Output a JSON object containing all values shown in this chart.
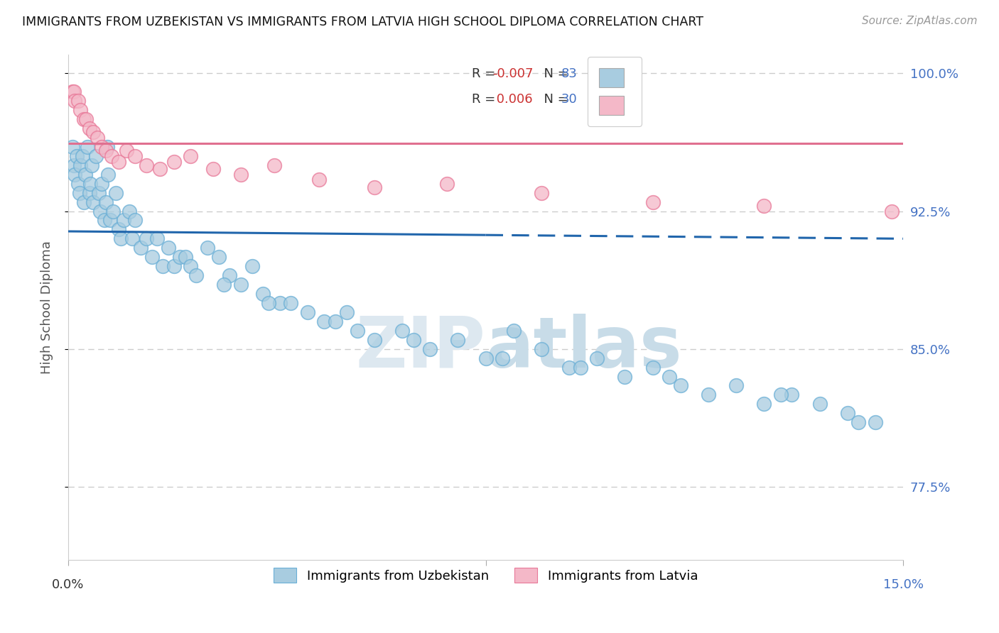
{
  "title": "IMMIGRANTS FROM UZBEKISTAN VS IMMIGRANTS FROM LATVIA HIGH SCHOOL DIPLOMA CORRELATION CHART",
  "source": "Source: ZipAtlas.com",
  "ylabel": "High School Diploma",
  "ytick_labels": [
    "100.0%",
    "92.5%",
    "85.0%",
    "77.5%"
  ],
  "ytick_values": [
    1.0,
    0.925,
    0.85,
    0.775
  ],
  "legend_label1": "Immigrants from Uzbekistan",
  "legend_label2": "Immigrants from Latvia",
  "blue_color": "#a8cce0",
  "blue_edge_color": "#6aafd6",
  "pink_color": "#f4b8c8",
  "pink_edge_color": "#e87898",
  "blue_line_color": "#2166ac",
  "pink_line_color": "#e07090",
  "legend_box_color": "#a8cce0",
  "legend_box_color2": "#f4b8c8",
  "blue_line_y": 0.912,
  "pink_line_y": 0.962,
  "xmin": 0.0,
  "xmax": 15.0,
  "ymin": 0.735,
  "ymax": 1.01,
  "blue_x": [
    0.08,
    0.1,
    0.12,
    0.15,
    0.18,
    0.2,
    0.22,
    0.25,
    0.28,
    0.3,
    0.35,
    0.38,
    0.4,
    0.42,
    0.45,
    0.5,
    0.55,
    0.58,
    0.6,
    0.65,
    0.68,
    0.7,
    0.72,
    0.75,
    0.8,
    0.85,
    0.9,
    0.95,
    1.0,
    1.1,
    1.15,
    1.2,
    1.3,
    1.4,
    1.5,
    1.6,
    1.7,
    1.8,
    1.9,
    2.0,
    2.1,
    2.2,
    2.3,
    2.5,
    2.7,
    2.9,
    3.1,
    3.3,
    3.5,
    3.8,
    4.0,
    4.3,
    4.6,
    5.0,
    5.5,
    6.0,
    6.5,
    7.0,
    7.5,
    8.0,
    8.5,
    9.0,
    9.5,
    10.0,
    10.5,
    11.0,
    11.5,
    12.0,
    12.5,
    13.0,
    13.5,
    14.0,
    14.5,
    5.2,
    6.2,
    7.8,
    9.2,
    10.8,
    12.8,
    14.2,
    2.8,
    3.6,
    4.8
  ],
  "blue_y": [
    0.96,
    0.95,
    0.945,
    0.955,
    0.94,
    0.935,
    0.95,
    0.955,
    0.93,
    0.945,
    0.96,
    0.935,
    0.94,
    0.95,
    0.93,
    0.955,
    0.935,
    0.925,
    0.94,
    0.92,
    0.93,
    0.96,
    0.945,
    0.92,
    0.925,
    0.935,
    0.915,
    0.91,
    0.92,
    0.925,
    0.91,
    0.92,
    0.905,
    0.91,
    0.9,
    0.91,
    0.895,
    0.905,
    0.895,
    0.9,
    0.9,
    0.895,
    0.89,
    0.905,
    0.9,
    0.89,
    0.885,
    0.895,
    0.88,
    0.875,
    0.875,
    0.87,
    0.865,
    0.87,
    0.855,
    0.86,
    0.85,
    0.855,
    0.845,
    0.86,
    0.85,
    0.84,
    0.845,
    0.835,
    0.84,
    0.83,
    0.825,
    0.83,
    0.82,
    0.825,
    0.82,
    0.815,
    0.81,
    0.86,
    0.855,
    0.845,
    0.84,
    0.835,
    0.825,
    0.81,
    0.885,
    0.875,
    0.865
  ],
  "pink_x": [
    0.08,
    0.1,
    0.12,
    0.18,
    0.22,
    0.28,
    0.32,
    0.38,
    0.45,
    0.52,
    0.6,
    0.68,
    0.78,
    0.9,
    1.05,
    1.2,
    1.4,
    1.65,
    1.9,
    2.2,
    2.6,
    3.1,
    3.7,
    4.5,
    5.5,
    6.8,
    8.5,
    10.5,
    12.5,
    14.8
  ],
  "pink_y": [
    0.99,
    0.99,
    0.985,
    0.985,
    0.98,
    0.975,
    0.975,
    0.97,
    0.968,
    0.965,
    0.96,
    0.958,
    0.955,
    0.952,
    0.958,
    0.955,
    0.95,
    0.948,
    0.952,
    0.955,
    0.948,
    0.945,
    0.95,
    0.942,
    0.938,
    0.94,
    0.935,
    0.93,
    0.928,
    0.925
  ]
}
